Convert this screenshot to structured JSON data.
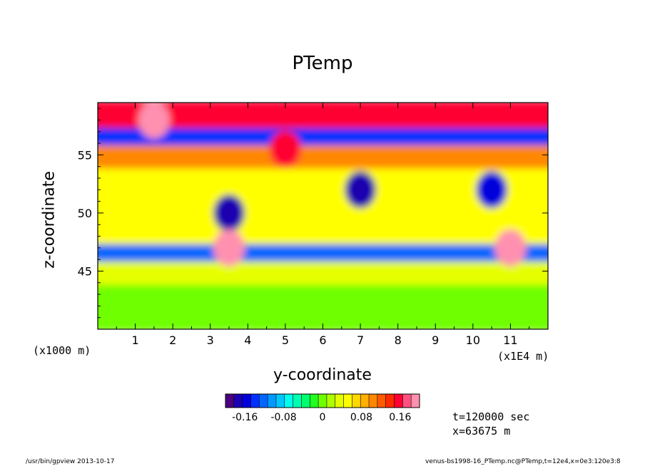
{
  "chart_data": {
    "type": "heatmap",
    "title": "PTemp",
    "xlabel": "y-coordinate",
    "ylabel": "z-coordinate",
    "x_unit_left": "(x1000 m)",
    "x_unit_right": "(x1E4 m)",
    "xlim": [
      0,
      12
    ],
    "ylim": [
      40,
      59.5
    ],
    "x_ticks": [
      "1",
      "2",
      "3",
      "4",
      "5",
      "6",
      "7",
      "8",
      "9",
      "10",
      "11"
    ],
    "y_ticks": [
      "45",
      "50",
      "55"
    ],
    "colorbar": {
      "range": [
        -0.2,
        0.2
      ],
      "tick_labels": [
        "-0.16",
        "-0.08",
        "0",
        "0.08",
        "0.16"
      ],
      "tick_values": [
        -0.16,
        -0.08,
        0,
        0.08,
        0.16
      ],
      "colors": [
        "#4b0082",
        "#1a00b0",
        "#0000dd",
        "#0030ff",
        "#0066ff",
        "#0099ff",
        "#00c8ff",
        "#00ffee",
        "#00ffb0",
        "#00ff70",
        "#20ff20",
        "#70ff00",
        "#b0ff00",
        "#e6ff00",
        "#ffff00",
        "#ffd800",
        "#ffb000",
        "#ff8800",
        "#ff5a00",
        "#ff2a00",
        "#ff0030",
        "#ff5080",
        "#ff90b0"
      ]
    },
    "bands": [
      {
        "z": [
          40,
          44
        ],
        "value": 0.0
      },
      {
        "z": [
          44,
          46
        ],
        "value": 0.04
      },
      {
        "z": [
          46,
          47.5
        ],
        "value": -0.12
      },
      {
        "z": [
          47.5,
          54
        ],
        "value": 0.06
      },
      {
        "z": [
          54,
          56
        ],
        "value": 0.1
      },
      {
        "z": [
          56,
          57.5
        ],
        "value": -0.14
      },
      {
        "z": [
          57.5,
          59.5
        ],
        "value": 0.15
      }
    ],
    "features": [
      {
        "y": 3.5,
        "z": 50,
        "value": -0.18
      },
      {
        "y": 7.0,
        "z": 52,
        "value": -0.17
      },
      {
        "y": 10.5,
        "z": 52,
        "value": -0.16
      },
      {
        "y": 5.0,
        "z": 55.5,
        "value": 0.16
      },
      {
        "y": 1.5,
        "z": 58,
        "value": 0.2
      },
      {
        "y": 3.5,
        "z": 47,
        "value": 0.2
      },
      {
        "y": 11.0,
        "z": 47,
        "value": 0.2
      }
    ]
  },
  "annotations": {
    "time": "t=120000 sec",
    "position": "x=63675 m"
  },
  "footer": {
    "left": "/usr/bin/gpview  2013-10-17",
    "right": "venus-bs1998-16_PTemp.nc@PTemp,t=12e4,x=0e3:120e3:8"
  }
}
